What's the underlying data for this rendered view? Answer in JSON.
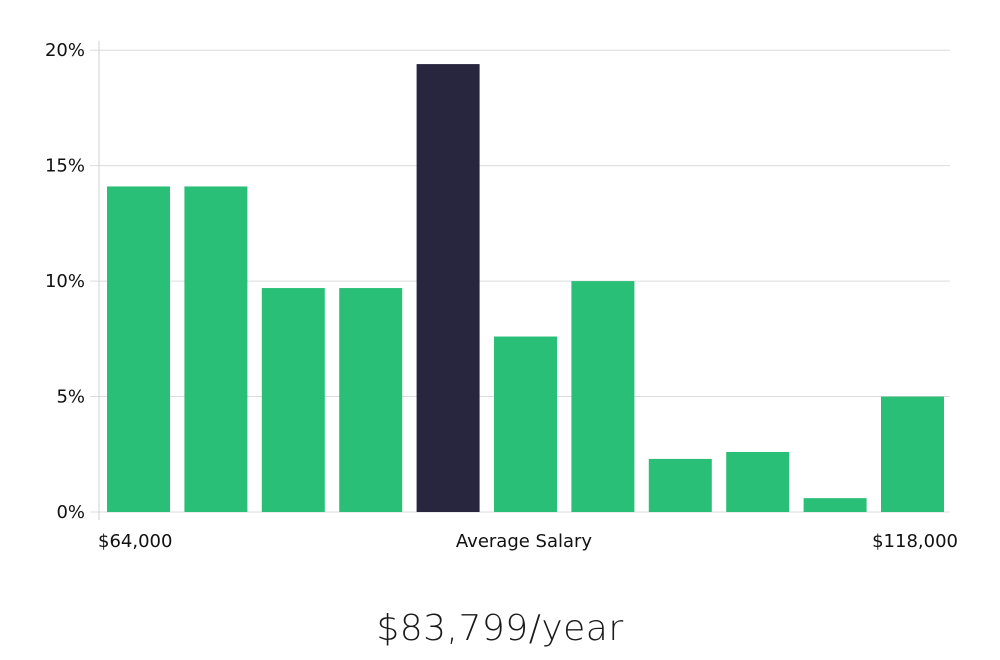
{
  "summary_text": "$83,799/year",
  "colors": {
    "bar": "#2ABF77",
    "highlight": "#28253F",
    "grid": "#DCDCDC",
    "axis": "#D0D0D0"
  },
  "chart_data": {
    "type": "bar",
    "title": "",
    "xlabel": "",
    "ylabel": "",
    "y_tick_labels": [
      "0%",
      "5%",
      "10%",
      "15%",
      "20%"
    ],
    "y_ticks": [
      0,
      5,
      10,
      15,
      20
    ],
    "ylim": [
      0,
      20.4
    ],
    "values": [
      14.1,
      14.1,
      9.7,
      9.7,
      19.4,
      7.6,
      10.0,
      2.3,
      2.6,
      0.6,
      5.0
    ],
    "highlight_index": 4,
    "x_labels": {
      "min": "$64,000",
      "center": "Average Salary",
      "max": "$118,000"
    }
  }
}
